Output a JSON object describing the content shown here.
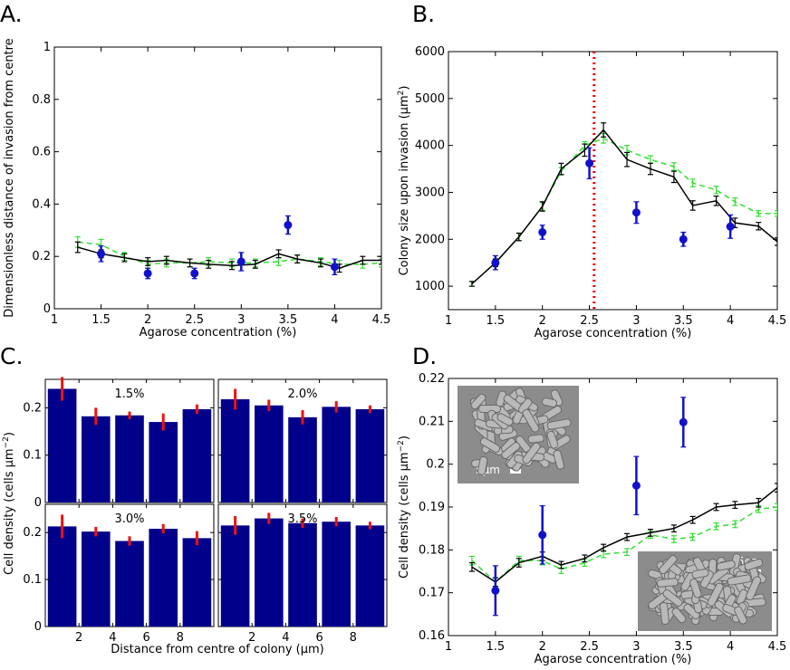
{
  "panels": {
    "A": "A.",
    "B": "B.",
    "C": "C.",
    "D": "D."
  },
  "insets": {
    "scale_top": "5μm",
    "scale_bottom": "5μm"
  },
  "chart_data": [
    {
      "id": "A",
      "type": "line",
      "xlabel": "Agarose concentration (%)",
      "ylabel": "Dimensionless distance of invasion from centre",
      "xlim": [
        1,
        4.5
      ],
      "ylim": [
        0,
        1
      ],
      "xticks": [
        1,
        1.5,
        2,
        2.5,
        3,
        3.5,
        4,
        4.5
      ],
      "xtick_labels": [
        "1",
        "1.5",
        "2",
        "2.5",
        "3",
        "3.5",
        "4",
        "4.5"
      ],
      "yticks": [
        0,
        0.2,
        0.4,
        0.6,
        0.8,
        1
      ],
      "ytick_labels": [
        "0",
        "0.2",
        "0.4",
        "0.6",
        "0.8",
        "1"
      ],
      "series": [
        {
          "style": "green-dashed",
          "color": "#33dd33",
          "x": [
            1.25,
            1.5,
            1.75,
            2.0,
            2.2,
            2.45,
            2.65,
            2.9,
            3.15,
            3.4,
            3.6,
            3.85,
            4.05,
            4.3,
            4.5
          ],
          "y": [
            0.255,
            0.245,
            0.2,
            0.17,
            0.175,
            0.175,
            0.18,
            0.175,
            0.175,
            0.18,
            0.19,
            0.18,
            0.17,
            0.17,
            0.175
          ],
          "err": [
            0.02,
            0.02,
            0.015,
            0.015,
            0.015,
            0.015,
            0.015,
            0.015,
            0.015,
            0.015,
            0.015,
            0.015,
            0.015,
            0.015,
            0.015
          ]
        },
        {
          "style": "black-solid",
          "color": "#000000",
          "x": [
            1.25,
            1.5,
            1.75,
            2.0,
            2.2,
            2.45,
            2.65,
            2.9,
            3.15,
            3.4,
            3.6,
            3.85,
            4.05,
            4.3,
            4.5
          ],
          "y": [
            0.235,
            0.21,
            0.195,
            0.18,
            0.185,
            0.175,
            0.17,
            0.165,
            0.17,
            0.21,
            0.19,
            0.175,
            0.155,
            0.185,
            0.185
          ],
          "err": [
            0.02,
            0.015,
            0.015,
            0.015,
            0.015,
            0.015,
            0.015,
            0.015,
            0.015,
            0.015,
            0.015,
            0.015,
            0.015,
            0.015,
            0.015
          ]
        },
        {
          "style": "blue-points",
          "color": "#1111cc",
          "x": [
            1.5,
            2.0,
            2.5,
            3.0,
            3.5,
            4.0
          ],
          "y": [
            0.21,
            0.135,
            0.135,
            0.18,
            0.32,
            0.16
          ],
          "err": [
            0.03,
            0.02,
            0.02,
            0.035,
            0.035,
            0.03
          ]
        }
      ]
    },
    {
      "id": "B",
      "type": "line",
      "xlabel": "Agarose concentration (%)",
      "ylabel": "Colony size upon invasion (μm",
      "ylabel_sup": "2",
      "ylabel_end": ")",
      "xlim": [
        1,
        4.5
      ],
      "ylim": [
        500,
        6000
      ],
      "xticks": [
        1,
        1.5,
        2,
        2.5,
        3,
        3.5,
        4,
        4.5
      ],
      "xtick_labels": [
        "1",
        "1.5",
        "2",
        "2.5",
        "3",
        "3.5",
        "4",
        "4.5"
      ],
      "yticks": [
        1000,
        2000,
        3000,
        4000,
        5000,
        6000
      ],
      "ytick_labels": [
        "1000",
        "2000",
        "3000",
        "4000",
        "5000",
        "6000"
      ],
      "vline_x": 2.55,
      "series": [
        {
          "style": "green-dashed",
          "color": "#33dd33",
          "x": [
            1.25,
            1.5,
            1.75,
            2.0,
            2.2,
            2.45,
            2.65,
            2.9,
            3.15,
            3.4,
            3.6,
            3.85,
            4.05,
            4.3,
            4.5
          ],
          "y": [
            1050,
            1500,
            2050,
            2700,
            3450,
            4000,
            4150,
            3900,
            3700,
            3550,
            3200,
            3050,
            2800,
            2550,
            2550
          ],
          "err": [
            50,
            80,
            80,
            80,
            80,
            80,
            100,
            100,
            80,
            80,
            80,
            80,
            80,
            60,
            60
          ]
        },
        {
          "style": "black-solid",
          "color": "#000000",
          "x": [
            1.25,
            1.5,
            1.75,
            2.0,
            2.2,
            2.45,
            2.65,
            2.9,
            3.15,
            3.4,
            3.6,
            3.85,
            4.05,
            4.3,
            4.5
          ],
          "y": [
            1050,
            1500,
            2050,
            2700,
            3500,
            3900,
            4330,
            3700,
            3500,
            3330,
            2720,
            2820,
            2350,
            2280,
            1950
          ],
          "err": [
            50,
            80,
            80,
            100,
            120,
            130,
            150,
            150,
            120,
            120,
            100,
            100,
            100,
            80,
            80
          ]
        },
        {
          "style": "blue-points",
          "color": "#1111cc",
          "x": [
            1.5,
            2.0,
            2.5,
            3.0,
            3.5,
            4.0
          ],
          "y": [
            1500,
            2150,
            3620,
            2570,
            2000,
            2270
          ],
          "err": [
            150,
            150,
            330,
            230,
            150,
            250
          ]
        }
      ]
    },
    {
      "id": "C",
      "type": "bar",
      "xlabel": "Distance from centre of colony (μm)",
      "ylabel": "Cell density (cells μm",
      "ylabel_sup": "−2",
      "ylabel_end": ")",
      "ylim": [
        0,
        0.26
      ],
      "yticks": [
        0,
        0.1,
        0.2
      ],
      "ytick_labels": [
        "0",
        "0.1",
        "0.2"
      ],
      "xticks": [
        2,
        4,
        6,
        8
      ],
      "xtick_labels": [
        "2",
        "4",
        "6",
        "8"
      ],
      "xlim": [
        0,
        10
      ],
      "bar_x": [
        1,
        3,
        5,
        7,
        9
      ],
      "bar_color": "#00008b",
      "err_color": "#ee1111",
      "subplots": [
        {
          "title": "1.5%",
          "values": [
            0.24,
            0.182,
            0.184,
            0.17,
            0.197
          ],
          "err": [
            0.025,
            0.018,
            0.008,
            0.018,
            0.01
          ]
        },
        {
          "title": "2.0%",
          "values": [
            0.218,
            0.205,
            0.18,
            0.202,
            0.197
          ],
          "err": [
            0.022,
            0.012,
            0.015,
            0.012,
            0.008
          ]
        },
        {
          "title": "3.0%",
          "values": [
            0.213,
            0.202,
            0.182,
            0.208,
            0.188
          ],
          "err": [
            0.025,
            0.01,
            0.01,
            0.01,
            0.015
          ]
        },
        {
          "title": "3.5%",
          "values": [
            0.215,
            0.23,
            0.22,
            0.223,
            0.215
          ],
          "err": [
            0.02,
            0.012,
            0.01,
            0.01,
            0.008
          ]
        }
      ]
    },
    {
      "id": "D",
      "type": "line",
      "xlabel": "Agarose concentration (%)",
      "ylabel": "Cell density (cells μm",
      "ylabel_sup": "−2",
      "ylabel_end": ")",
      "xlim": [
        1,
        4.5
      ],
      "ylim": [
        0.16,
        0.22
      ],
      "xticks": [
        1,
        1.5,
        2,
        2.5,
        3,
        3.5,
        4,
        4.5
      ],
      "xtick_labels": [
        "1",
        "1.5",
        "2",
        "2.5",
        "3",
        "3.5",
        "4",
        "4.5"
      ],
      "yticks": [
        0.16,
        0.17,
        0.18,
        0.19,
        0.2,
        0.21,
        0.22
      ],
      "ytick_labels": [
        "0.16",
        "0.17",
        "0.18",
        "0.19",
        "0.2",
        "0.21",
        "0.22"
      ],
      "series": [
        {
          "style": "green-dashed",
          "color": "#33dd33",
          "x": [
            1.25,
            1.5,
            1.75,
            2.0,
            2.2,
            2.45,
            2.65,
            2.9,
            3.15,
            3.4,
            3.6,
            3.85,
            4.05,
            4.3,
            4.5
          ],
          "y": [
            0.1775,
            0.1725,
            0.1775,
            0.1775,
            0.1755,
            0.177,
            0.179,
            0.1795,
            0.1835,
            0.1825,
            0.183,
            0.1855,
            0.186,
            0.1895,
            0.19
          ],
          "err": [
            0.001,
            0.001,
            0.001,
            0.001,
            0.001,
            0.0008,
            0.0008,
            0.0008,
            0.0008,
            0.0008,
            0.0008,
            0.0008,
            0.0008,
            0.0008,
            0.0008
          ]
        },
        {
          "style": "black-solid",
          "color": "#000000",
          "x": [
            1.25,
            1.5,
            1.75,
            2.0,
            2.2,
            2.45,
            2.65,
            2.9,
            3.15,
            3.4,
            3.6,
            3.85,
            4.05,
            4.3,
            4.5
          ],
          "y": [
            0.176,
            0.1725,
            0.177,
            0.1785,
            0.1765,
            0.178,
            0.1805,
            0.183,
            0.184,
            0.185,
            0.187,
            0.19,
            0.1905,
            0.191,
            0.1945
          ],
          "err": [
            0.001,
            0.001,
            0.001,
            0.001,
            0.0008,
            0.0008,
            0.0008,
            0.0008,
            0.0008,
            0.0008,
            0.0008,
            0.0008,
            0.0008,
            0.001,
            0.001
          ]
        },
        {
          "style": "blue-points",
          "color": "#1111cc",
          "x": [
            1.5,
            2.0,
            3.0,
            3.5
          ],
          "y": [
            0.1705,
            0.1835,
            0.195,
            0.2098
          ],
          "err": [
            0.0058,
            0.0068,
            0.0068,
            0.0058
          ]
        }
      ]
    }
  ]
}
